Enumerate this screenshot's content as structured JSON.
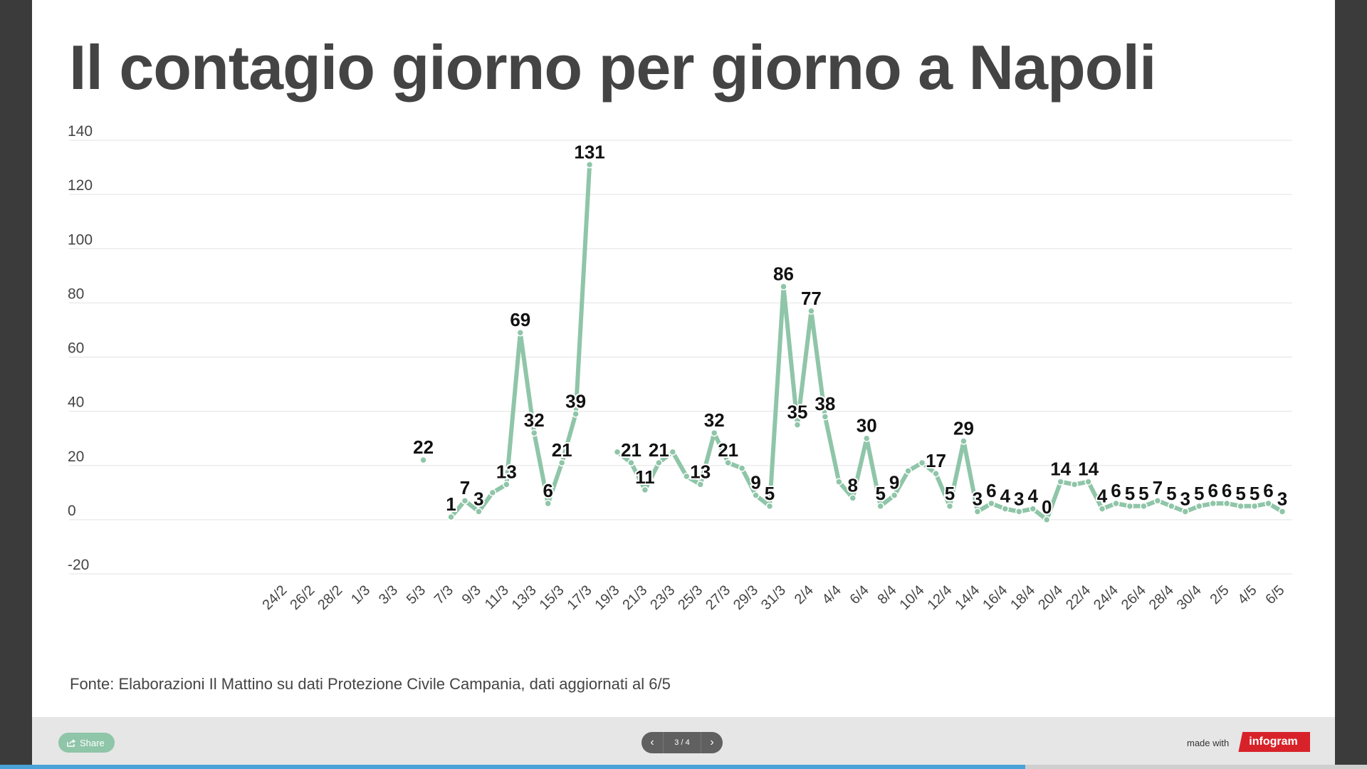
{
  "title": "Il contagio giorno per giorno a Napoli",
  "source": "Fonte: Elaborazioni Il Mattino su dati Protezione Civile Campania, dati aggiornati al 6/5",
  "footer": {
    "share_label": "Share",
    "page_indicator": "3 / 4",
    "made_with": "made with",
    "brand": "infogram",
    "progress": 0.75
  },
  "colors": {
    "line": "#8fc5a8",
    "text": "#444444",
    "grid": "#e3e3e3",
    "footer_bg": "#e6e6e6",
    "brand": "#d8222a",
    "progress": "#4aa3d8"
  },
  "icons": {
    "share": "share-icon",
    "prev": "chevron-left-icon",
    "next": "chevron-right-icon"
  },
  "chart_data": {
    "type": "line",
    "ylim": [
      -20,
      140
    ],
    "yticks": [
      -20,
      0,
      20,
      40,
      60,
      80,
      100,
      120,
      140
    ],
    "grid": true,
    "x_tick_labels": [
      "24/2",
      "26/2",
      "28/2",
      "1/3",
      "3/3",
      "5/3",
      "7/3",
      "9/3",
      "11/3",
      "13/3",
      "15/3",
      "17/3",
      "19/3",
      "21/3",
      "23/3",
      "25/3",
      "27/3",
      "29/3",
      "31/3",
      "2/4",
      "4/4",
      "6/4",
      "8/4",
      "10/4",
      "12/4",
      "14/4",
      "16/4",
      "18/4",
      "20/4",
      "22/4",
      "24/4",
      "26/4",
      "28/4",
      "30/4",
      "2/5",
      "4/5",
      "6/5"
    ],
    "x": [
      "24/2",
      "25/2",
      "26/2",
      "27/2",
      "28/2",
      "29/2",
      "1/3",
      "2/3",
      "3/3",
      "4/3",
      "5/3",
      "6/3",
      "7/3",
      "8/3",
      "9/3",
      "10/3",
      "11/3",
      "12/3",
      "13/3",
      "14/3",
      "15/3",
      "16/3",
      "17/3",
      "18/3",
      "19/3",
      "20/3",
      "21/3",
      "22/3",
      "23/3",
      "24/3",
      "25/3",
      "26/3",
      "27/3",
      "28/3",
      "29/3",
      "30/3",
      "31/3",
      "1/4",
      "2/4",
      "3/4",
      "4/4",
      "5/4",
      "6/4",
      "7/4",
      "8/4",
      "9/4",
      "10/4",
      "11/4",
      "12/4",
      "13/4",
      "14/4",
      "15/4",
      "16/4",
      "17/4",
      "18/4",
      "19/4",
      "20/4",
      "21/4",
      "22/4",
      "23/4",
      "24/4",
      "25/4",
      "26/4",
      "27/4",
      "28/4",
      "29/4",
      "30/4",
      "1/5",
      "2/5",
      "3/5",
      "4/5",
      "5/5",
      "6/5"
    ],
    "values": [
      null,
      null,
      null,
      null,
      null,
      null,
      null,
      null,
      null,
      null,
      22,
      null,
      1,
      7,
      3,
      10,
      13,
      69,
      32,
      6,
      21,
      39,
      131,
      null,
      25,
      21,
      11,
      21,
      25,
      16,
      13,
      32,
      21,
      19,
      9,
      5,
      86,
      35,
      77,
      38,
      14,
      8,
      30,
      5,
      9,
      18,
      21,
      17,
      5,
      29,
      3,
      6,
      4,
      3,
      4,
      0,
      14,
      13,
      14,
      4,
      6,
      5,
      5,
      7,
      5,
      3,
      5,
      6,
      6,
      5,
      5,
      6,
      3
    ],
    "data_labels": [
      {
        "x": "5/3",
        "label": "22"
      },
      {
        "x": "7/3",
        "label": "1"
      },
      {
        "x": "8/3",
        "label": "7"
      },
      {
        "x": "9/3",
        "label": "3"
      },
      {
        "x": "11/3",
        "label": "13"
      },
      {
        "x": "12/3",
        "label": "69"
      },
      {
        "x": "13/3",
        "label": "32"
      },
      {
        "x": "14/3",
        "label": "6"
      },
      {
        "x": "15/3",
        "label": "21"
      },
      {
        "x": "16/3",
        "label": "39"
      },
      {
        "x": "17/3",
        "label": "131"
      },
      {
        "x": "20/3",
        "label": "21"
      },
      {
        "x": "21/3",
        "label": "11"
      },
      {
        "x": "22/3",
        "label": "21"
      },
      {
        "x": "25/3",
        "label": "13"
      },
      {
        "x": "26/3",
        "label": "32"
      },
      {
        "x": "27/3",
        "label": "21"
      },
      {
        "x": "29/3",
        "label": "9"
      },
      {
        "x": "30/3",
        "label": "5"
      },
      {
        "x": "31/3",
        "label": "86"
      },
      {
        "x": "1/4",
        "label": "35"
      },
      {
        "x": "2/4",
        "label": "77"
      },
      {
        "x": "3/4",
        "label": "38"
      },
      {
        "x": "5/4",
        "label": "8"
      },
      {
        "x": "6/4",
        "label": "30"
      },
      {
        "x": "7/4",
        "label": "5"
      },
      {
        "x": "8/4",
        "label": "9"
      },
      {
        "x": "11/4",
        "label": "17"
      },
      {
        "x": "12/4",
        "label": "5"
      },
      {
        "x": "13/4",
        "label": "29"
      },
      {
        "x": "14/4",
        "label": "3"
      },
      {
        "x": "15/4",
        "label": "6"
      },
      {
        "x": "16/4",
        "label": "4"
      },
      {
        "x": "17/4",
        "label": "3"
      },
      {
        "x": "18/4",
        "label": "4"
      },
      {
        "x": "19/4",
        "label": "0"
      },
      {
        "x": "20/4",
        "label": "14"
      },
      {
        "x": "22/4",
        "label": "14"
      },
      {
        "x": "23/4",
        "label": "4"
      },
      {
        "x": "24/4",
        "label": "6"
      },
      {
        "x": "25/4",
        "label": "5"
      },
      {
        "x": "26/4",
        "label": "5"
      },
      {
        "x": "27/4",
        "label": "7"
      },
      {
        "x": "28/4",
        "label": "5"
      },
      {
        "x": "29/4",
        "label": "3"
      },
      {
        "x": "30/4",
        "label": "5"
      },
      {
        "x": "1/5",
        "label": "6"
      },
      {
        "x": "2/5",
        "label": "6"
      },
      {
        "x": "3/5",
        "label": "5"
      },
      {
        "x": "4/5",
        "label": "5"
      },
      {
        "x": "5/5",
        "label": "6"
      },
      {
        "x": "6/5",
        "label": "3"
      }
    ]
  }
}
